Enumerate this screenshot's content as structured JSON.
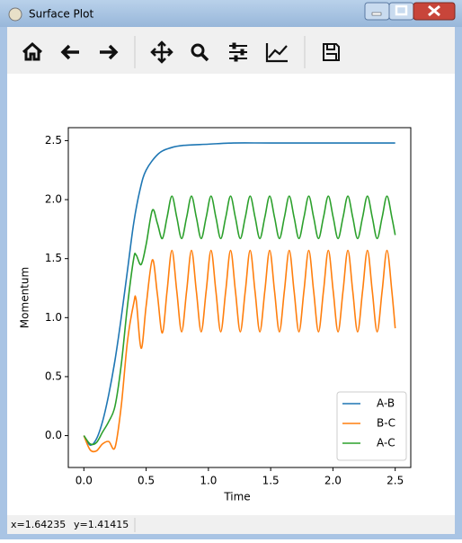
{
  "window": {
    "title": "Surface Plot",
    "status_x": "x=1.64235",
    "status_y": "y=1.41415"
  },
  "chart_data": {
    "type": "line",
    "xlabel": "Time",
    "ylabel": "Momentum",
    "xlim": [
      -0.125,
      2.625
    ],
    "ylim": [
      -0.27,
      2.61
    ],
    "xticks": [
      {
        "value": 0,
        "label": "0.0"
      },
      0.5,
      {
        "value": 1,
        "label": "1.0"
      },
      1.5,
      {
        "value": 2,
        "label": "2.0"
      },
      2.5
    ],
    "yticks": [
      {
        "value": 0,
        "label": "0.0"
      },
      0.5,
      {
        "value": 1,
        "label": "1.0"
      },
      1.5,
      {
        "value": 2,
        "label": "2.0"
      },
      2.5
    ],
    "grid": false,
    "legend": "lower right",
    "series": [
      {
        "name": "A-B",
        "color": "#1f77b4",
        "x": [
          0,
          0.05,
          0.1,
          0.15,
          0.2,
          0.25,
          0.3,
          0.35,
          0.4,
          0.45,
          0.5,
          0.6,
          0.7,
          0.8,
          1.0,
          1.2,
          1.5,
          2.0,
          2.5
        ],
        "values": [
          0,
          -0.08,
          -0.03,
          0.12,
          0.35,
          0.64,
          1.0,
          1.4,
          1.8,
          2.08,
          2.25,
          2.39,
          2.44,
          2.46,
          2.47,
          2.48,
          2.48,
          2.48,
          2.48
        ]
      },
      {
        "name": "B-C",
        "color": "#ff7f0e",
        "x": [
          0,
          0.05,
          0.1,
          0.15,
          0.2,
          0.25,
          0.3,
          0.35,
          0.4,
          0.42,
          0.46,
          0.5,
          0.55,
          0.59,
          0.63,
          0.668,
          0.707,
          0.746,
          0.785,
          0.825,
          0.864,
          0.903,
          0.942,
          0.982,
          1.021,
          1.06,
          1.099,
          1.139,
          1.178,
          1.217,
          1.256,
          1.296,
          1.335,
          1.374,
          1.413,
          1.453,
          1.492,
          1.531,
          1.57,
          1.61,
          1.649,
          1.688,
          1.727,
          1.767,
          1.806,
          1.845,
          1.884,
          1.924,
          1.963,
          2.002,
          2.041,
          2.081,
          2.12,
          2.159,
          2.198,
          2.238,
          2.277,
          2.316,
          2.355,
          2.395,
          2.434,
          2.473,
          2.5
        ],
        "values": [
          0,
          -0.12,
          -0.13,
          -0.07,
          -0.05,
          -0.1,
          0.25,
          0.8,
          1.12,
          1.15,
          0.74,
          1.1,
          1.49,
          1.2,
          0.87,
          1.225,
          1.57,
          1.225,
          0.88,
          1.225,
          1.57,
          1.225,
          0.88,
          1.225,
          1.57,
          1.225,
          0.88,
          1.225,
          1.57,
          1.225,
          0.88,
          1.225,
          1.57,
          1.225,
          0.88,
          1.225,
          1.57,
          1.225,
          0.88,
          1.225,
          1.57,
          1.225,
          0.88,
          1.225,
          1.57,
          1.225,
          0.88,
          1.225,
          1.57,
          1.225,
          0.88,
          1.225,
          1.57,
          1.225,
          0.88,
          1.225,
          1.57,
          1.225,
          0.88,
          1.225,
          1.57,
          1.225,
          0.91
        ]
      },
      {
        "name": "A-C",
        "color": "#2ca02c",
        "x": [
          0,
          0.05,
          0.1,
          0.15,
          0.2,
          0.25,
          0.3,
          0.35,
          0.4,
          0.42,
          0.46,
          0.5,
          0.55,
          0.59,
          0.63,
          0.668,
          0.707,
          0.746,
          0.785,
          0.825,
          0.864,
          0.903,
          0.942,
          0.982,
          1.021,
          1.06,
          1.099,
          1.139,
          1.178,
          1.217,
          1.256,
          1.296,
          1.335,
          1.374,
          1.413,
          1.453,
          1.492,
          1.531,
          1.57,
          1.61,
          1.649,
          1.688,
          1.727,
          1.767,
          1.806,
          1.845,
          1.884,
          1.924,
          1.963,
          2.002,
          2.041,
          2.081,
          2.12,
          2.159,
          2.198,
          2.238,
          2.277,
          2.316,
          2.355,
          2.395,
          2.434,
          2.473,
          2.5
        ],
        "values": [
          0,
          -0.07,
          -0.06,
          0.03,
          0.12,
          0.25,
          0.6,
          1.1,
          1.5,
          1.53,
          1.45,
          1.62,
          1.91,
          1.8,
          1.67,
          1.85,
          2.03,
          1.85,
          1.67,
          1.85,
          2.03,
          1.85,
          1.67,
          1.85,
          2.03,
          1.85,
          1.67,
          1.85,
          2.03,
          1.85,
          1.67,
          1.85,
          2.03,
          1.85,
          1.67,
          1.85,
          2.03,
          1.85,
          1.67,
          1.85,
          2.03,
          1.85,
          1.67,
          1.85,
          2.03,
          1.85,
          1.67,
          1.85,
          2.03,
          1.85,
          1.67,
          1.85,
          2.03,
          1.85,
          1.67,
          1.85,
          2.03,
          1.85,
          1.67,
          1.85,
          2.03,
          1.85,
          1.7
        ]
      }
    ]
  }
}
